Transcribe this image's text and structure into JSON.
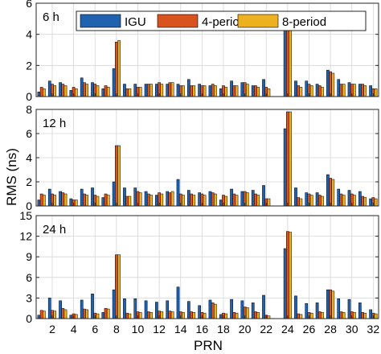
{
  "chart_data": {
    "type": "bar",
    "xlabel": "PRN",
    "ylabel": "RMS (ns)",
    "x_ticks": [
      "2",
      "4",
      "6",
      "8",
      "10",
      "12",
      "14",
      "16",
      "18",
      "20",
      "22",
      "24",
      "26",
      "28",
      "30",
      "32"
    ],
    "grid": true,
    "legend_placement": "top",
    "series_names": [
      "IGU",
      "4-period",
      "8-period"
    ],
    "colors": {
      "IGU": "#1f62b0",
      "4-period": "#d9531e",
      "8-period": "#edb120"
    },
    "panels": [
      {
        "label": "6 h",
        "ylim": [
          0,
          6
        ],
        "yticks": [
          "0",
          "2",
          "4",
          "6"
        ],
        "x": [
          1,
          2,
          3,
          4,
          5,
          6,
          7,
          8,
          9,
          10,
          11,
          12,
          13,
          14,
          15,
          16,
          17,
          18,
          19,
          20,
          21,
          22,
          24,
          25,
          26,
          27,
          28,
          29,
          30,
          31,
          32
        ],
        "series": [
          {
            "name": "IGU",
            "values": [
              0.3,
              1.0,
              0.9,
              0.4,
              1.2,
              0.9,
              0.5,
              1.8,
              0.8,
              0.8,
              0.8,
              0.8,
              0.8,
              0.8,
              1.1,
              0.8,
              0.7,
              0.5,
              1.0,
              0.9,
              0.7,
              1.1,
              4.3,
              1.0,
              1.0,
              0.8,
              1.7,
              1.1,
              0.9,
              0.8,
              0.7
            ]
          },
          {
            "name": "4-period",
            "values": [
              0.6,
              0.8,
              0.8,
              0.6,
              0.9,
              0.8,
              0.7,
              3.5,
              0.5,
              0.6,
              0.8,
              0.9,
              0.9,
              0.7,
              0.7,
              0.7,
              0.8,
              0.7,
              0.7,
              0.9,
              0.7,
              0.6,
              4.7,
              0.7,
              0.8,
              0.7,
              1.6,
              0.8,
              0.8,
              0.8,
              0.5
            ]
          },
          {
            "name": "8-period",
            "values": [
              0.5,
              0.7,
              0.7,
              0.5,
              0.8,
              0.7,
              0.6,
              3.6,
              0.5,
              0.6,
              0.8,
              0.8,
              0.9,
              0.7,
              0.7,
              0.7,
              0.7,
              0.6,
              0.7,
              0.8,
              0.6,
              0.5,
              4.8,
              0.6,
              0.7,
              0.6,
              1.5,
              0.8,
              0.8,
              0.7,
              0.5
            ]
          }
        ]
      },
      {
        "label": "12 h",
        "ylim": [
          0,
          8
        ],
        "yticks": [
          "0",
          "2",
          "4",
          "6",
          "8"
        ],
        "x": [
          1,
          2,
          3,
          4,
          5,
          6,
          7,
          8,
          9,
          10,
          11,
          12,
          13,
          14,
          15,
          16,
          17,
          18,
          19,
          20,
          21,
          22,
          24,
          25,
          26,
          27,
          28,
          29,
          30,
          31,
          32
        ],
        "series": [
          {
            "name": "IGU",
            "values": [
              0.5,
              1.4,
              1.2,
              0.6,
              1.4,
              1.5,
              0.7,
              2.0,
              1.5,
              1.5,
              1.2,
              0.9,
              1.2,
              2.2,
              1.3,
              1.1,
              1.2,
              0.5,
              1.4,
              1.2,
              1.3,
              1.7,
              6.4,
              1.5,
              1.1,
              1.1,
              2.6,
              1.4,
              1.3,
              1.2,
              0.6
            ]
          },
          {
            "name": "4-period",
            "values": [
              1.0,
              1.0,
              1.1,
              0.5,
              1.0,
              0.9,
              1.0,
              5.0,
              0.8,
              1.2,
              1.0,
              1.1,
              1.1,
              1.0,
              1.0,
              1.0,
              1.1,
              0.9,
              1.0,
              1.2,
              1.0,
              0.6,
              7.8,
              0.7,
              1.0,
              0.9,
              2.3,
              1.0,
              1.0,
              0.8,
              0.7
            ]
          },
          {
            "name": "8-period",
            "values": [
              0.9,
              0.9,
              1.0,
              0.5,
              0.9,
              0.8,
              0.9,
              5.0,
              0.8,
              1.1,
              0.9,
              1.0,
              1.2,
              0.9,
              0.9,
              0.9,
              1.0,
              0.8,
              0.9,
              1.1,
              0.9,
              0.6,
              7.8,
              0.6,
              0.9,
              0.8,
              2.2,
              0.9,
              0.9,
              0.7,
              0.6
            ]
          }
        ]
      },
      {
        "label": "24 h",
        "ylim": [
          0,
          15
        ],
        "yticks": [
          "0",
          "3",
          "6",
          "9",
          "12",
          "15"
        ],
        "x": [
          1,
          2,
          3,
          4,
          5,
          6,
          7,
          8,
          9,
          10,
          11,
          12,
          13,
          14,
          15,
          16,
          17,
          18,
          19,
          20,
          21,
          22,
          24,
          25,
          26,
          27,
          28,
          29,
          30,
          31,
          32
        ],
        "series": [
          {
            "name": "IGU",
            "values": [
              0.5,
              3.0,
              2.6,
              0.5,
              2.7,
              3.6,
              0.9,
              4.2,
              2.9,
              2.9,
              2.6,
              2.4,
              2.6,
              4.6,
              2.5,
              1.9,
              2.7,
              0.6,
              2.8,
              2.6,
              2.3,
              3.4,
              10.2,
              3.3,
              2.2,
              2.3,
              4.2,
              2.9,
              2.8,
              2.3,
              1.3
            ]
          },
          {
            "name": "4-period",
            "values": [
              1.2,
              1.2,
              1.5,
              0.7,
              1.4,
              0.8,
              1.5,
              9.3,
              0.8,
              1.0,
              1.0,
              1.1,
              1.1,
              1.0,
              1.0,
              0.9,
              2.3,
              0.8,
              0.9,
              1.7,
              1.0,
              0.5,
              12.7,
              0.7,
              0.9,
              1.0,
              4.2,
              1.0,
              1.0,
              0.9,
              0.8
            ]
          },
          {
            "name": "8-period",
            "values": [
              1.1,
              1.1,
              1.3,
              0.6,
              1.3,
              0.7,
              1.4,
              9.3,
              0.7,
              0.9,
              0.9,
              1.0,
              1.0,
              0.9,
              0.9,
              0.8,
              2.1,
              0.7,
              0.8,
              1.6,
              0.9,
              0.4,
              12.6,
              0.6,
              0.8,
              0.9,
              4.0,
              0.9,
              0.9,
              0.8,
              0.7
            ]
          }
        ]
      }
    ]
  }
}
